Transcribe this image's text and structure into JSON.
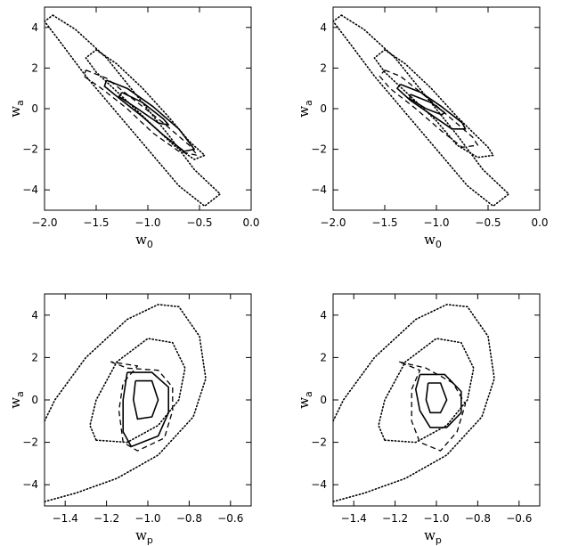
{
  "chart_data": [
    {
      "type": "contour",
      "panel": "top-left",
      "xlabel": "w",
      "xlabel_sub": "0",
      "ylabel": "w",
      "ylabel_sub": "a",
      "xlim": [
        -2.0,
        0.0
      ],
      "ylim": [
        -5,
        5
      ],
      "xticks": [
        "-2.0",
        "-1.5",
        "-1.0",
        "-0.5",
        "0.0"
      ],
      "yticks": [
        "-4",
        "-2",
        "0",
        "2",
        "4"
      ],
      "contours": [
        {
          "style": "dotted",
          "center": [
            -1.1,
            0.0
          ],
          "rx": 0.12,
          "ry": 5.6,
          "rot": 0.9,
          "points": [
            [
              -1.92,
              4.6
            ],
            [
              -1.7,
              3.9
            ],
            [
              -1.4,
              2.5
            ],
            [
              -1.1,
              0.6
            ],
            [
              -0.8,
              -1.3
            ],
            [
              -0.55,
              -3.0
            ],
            [
              -0.3,
              -4.2
            ],
            [
              -0.45,
              -4.8
            ],
            [
              -0.7,
              -3.8
            ],
            [
              -1.0,
              -2.0
            ],
            [
              -1.3,
              -0.2
            ],
            [
              -1.6,
              1.6
            ],
            [
              -1.85,
              3.3
            ],
            [
              -2.0,
              4.3
            ],
            [
              -1.92,
              4.6
            ]
          ]
        },
        {
          "style": "dotted",
          "points": [
            [
              -1.5,
              2.9
            ],
            [
              -1.3,
              2.2
            ],
            [
              -1.05,
              1.0
            ],
            [
              -0.8,
              -0.4
            ],
            [
              -0.6,
              -1.6
            ],
            [
              -0.45,
              -2.3
            ],
            [
              -0.55,
              -2.5
            ],
            [
              -0.75,
              -1.8
            ],
            [
              -1.0,
              -0.6
            ],
            [
              -1.25,
              0.6
            ],
            [
              -1.5,
              1.8
            ],
            [
              -1.6,
              2.5
            ],
            [
              -1.5,
              2.9
            ]
          ]
        },
        {
          "style": "dashed",
          "points": [
            [
              -1.6,
              1.9
            ],
            [
              -1.4,
              1.5
            ],
            [
              -1.15,
              0.5
            ],
            [
              -0.85,
              -0.7
            ],
            [
              -0.6,
              -1.8
            ],
            [
              -0.52,
              -2.3
            ],
            [
              -0.7,
              -2.1
            ],
            [
              -0.95,
              -1.2
            ],
            [
              -1.2,
              0.0
            ],
            [
              -1.45,
              1.0
            ],
            [
              -1.62,
              1.6
            ],
            [
              -1.6,
              1.9
            ]
          ]
        },
        {
          "style": "solid",
          "points": [
            [
              -1.4,
              1.4
            ],
            [
              -1.2,
              1.0
            ],
            [
              -0.95,
              0.1
            ],
            [
              -0.7,
              -1.0
            ],
            [
              -0.55,
              -2.0
            ],
            [
              -0.65,
              -2.1
            ],
            [
              -0.85,
              -1.3
            ],
            [
              -1.05,
              -0.4
            ],
            [
              -1.25,
              0.4
            ],
            [
              -1.42,
              1.1
            ],
            [
              -1.4,
              1.4
            ]
          ]
        },
        {
          "style": "solid",
          "points": [
            [
              -1.25,
              0.8
            ],
            [
              -1.05,
              0.3
            ],
            [
              -0.85,
              -0.5
            ],
            [
              -0.8,
              -0.8
            ],
            [
              -0.9,
              -0.7
            ],
            [
              -1.1,
              0.0
            ],
            [
              -1.28,
              0.6
            ],
            [
              -1.25,
              0.8
            ]
          ]
        }
      ]
    },
    {
      "type": "contour",
      "panel": "top-right",
      "xlabel": "w",
      "xlabel_sub": "0",
      "ylabel": "w",
      "ylabel_sub": "a",
      "xlim": [
        -2.0,
        0.0
      ],
      "ylim": [
        -5,
        5
      ],
      "xticks": [
        "-2.0",
        "-1.5",
        "-1.0",
        "-0.5",
        "0.0"
      ],
      "yticks": [
        "-4",
        "-2",
        "0",
        "2",
        "4"
      ],
      "contours": [
        {
          "style": "dotted",
          "points": [
            [
              -1.92,
              4.6
            ],
            [
              -1.7,
              3.9
            ],
            [
              -1.4,
              2.5
            ],
            [
              -1.1,
              0.6
            ],
            [
              -0.8,
              -1.3
            ],
            [
              -0.55,
              -3.0
            ],
            [
              -0.3,
              -4.2
            ],
            [
              -0.45,
              -4.8
            ],
            [
              -0.7,
              -3.8
            ],
            [
              -1.0,
              -2.0
            ],
            [
              -1.3,
              -0.2
            ],
            [
              -1.6,
              1.6
            ],
            [
              -1.85,
              3.3
            ],
            [
              -2.0,
              4.3
            ],
            [
              -1.92,
              4.6
            ]
          ]
        },
        {
          "style": "dotted",
          "points": [
            [
              -1.5,
              2.9
            ],
            [
              -1.3,
              2.2
            ],
            [
              -1.05,
              1.0
            ],
            [
              -0.8,
              -0.4
            ],
            [
              -0.5,
              -1.9
            ],
            [
              -0.45,
              -2.3
            ],
            [
              -0.6,
              -2.4
            ],
            [
              -0.8,
              -1.8
            ],
            [
              -1.0,
              -0.6
            ],
            [
              -1.25,
              0.6
            ],
            [
              -1.5,
              1.8
            ],
            [
              -1.6,
              2.5
            ],
            [
              -1.5,
              2.9
            ]
          ]
        },
        {
          "style": "dashed",
          "points": [
            [
              -1.5,
              1.9
            ],
            [
              -1.35,
              1.6
            ],
            [
              -1.15,
              0.8
            ],
            [
              -0.9,
              -0.3
            ],
            [
              -0.65,
              -1.4
            ],
            [
              -0.6,
              -1.8
            ],
            [
              -0.75,
              -1.9
            ],
            [
              -0.95,
              -1.1
            ],
            [
              -1.2,
              0.0
            ],
            [
              -1.45,
              1.0
            ],
            [
              -1.55,
              1.6
            ],
            [
              -1.5,
              1.9
            ]
          ]
        },
        {
          "style": "solid",
          "points": [
            [
              -1.35,
              1.2
            ],
            [
              -1.15,
              0.8
            ],
            [
              -0.95,
              0.1
            ],
            [
              -0.75,
              -0.7
            ],
            [
              -0.72,
              -1.0
            ],
            [
              -0.85,
              -1.0
            ],
            [
              -1.05,
              -0.3
            ],
            [
              -1.25,
              0.4
            ],
            [
              -1.38,
              1.0
            ],
            [
              -1.35,
              1.2
            ]
          ]
        },
        {
          "style": "solid",
          "points": [
            [
              -1.25,
              0.7
            ],
            [
              -1.05,
              0.3
            ],
            [
              -0.92,
              -0.2
            ],
            [
              -0.95,
              -0.3
            ],
            [
              -1.1,
              0.0
            ],
            [
              -1.26,
              0.5
            ],
            [
              -1.25,
              0.7
            ]
          ]
        }
      ]
    },
    {
      "type": "contour",
      "panel": "bottom-left",
      "xlabel": "w",
      "xlabel_sub": "p",
      "ylabel": "w",
      "ylabel_sub": "a",
      "xlim": [
        -1.5,
        -0.5
      ],
      "ylim": [
        -5,
        5
      ],
      "xticks": [
        "-1.4",
        "-1.2",
        "-1.0",
        "-0.8",
        "-0.6"
      ],
      "yticks": [
        "-4",
        "-2",
        "0",
        "2",
        "4"
      ],
      "contours": [
        {
          "style": "dotted",
          "points": [
            [
              -1.5,
              -4.8
            ],
            [
              -1.35,
              -4.4
            ],
            [
              -1.15,
              -3.7
            ],
            [
              -0.95,
              -2.6
            ],
            [
              -0.78,
              -0.8
            ],
            [
              -0.72,
              1.0
            ],
            [
              -0.75,
              3.0
            ],
            [
              -0.85,
              4.4
            ],
            [
              -0.95,
              4.5
            ],
            [
              -1.1,
              3.8
            ],
            [
              -1.3,
              2.0
            ],
            [
              -1.45,
              0.0
            ],
            [
              -1.5,
              -1.0
            ]
          ]
        },
        {
          "style": "dotted",
          "points": [
            [
              -1.25,
              -1.9
            ],
            [
              -1.1,
              -2.0
            ],
            [
              -0.95,
              -1.2
            ],
            [
              -0.85,
              0.0
            ],
            [
              -0.82,
              1.5
            ],
            [
              -0.88,
              2.7
            ],
            [
              -1.0,
              2.9
            ],
            [
              -1.15,
              1.8
            ],
            [
              -1.25,
              0.0
            ],
            [
              -1.28,
              -1.2
            ],
            [
              -1.25,
              -1.9
            ]
          ]
        },
        {
          "style": "dashed",
          "points": [
            [
              -1.18,
              1.8
            ],
            [
              -1.1,
              1.5
            ],
            [
              -0.95,
              1.4
            ],
            [
              -0.88,
              0.6
            ],
            [
              -0.88,
              -0.5
            ],
            [
              -0.92,
              -1.8
            ],
            [
              -1.05,
              -2.4
            ],
            [
              -1.12,
              -2.0
            ],
            [
              -1.14,
              -0.5
            ],
            [
              -1.12,
              0.8
            ],
            [
              -1.05,
              1.6
            ],
            [
              -1.18,
              1.8
            ]
          ]
        },
        {
          "style": "solid",
          "points": [
            [
              -1.1,
              1.3
            ],
            [
              -0.98,
              1.3
            ],
            [
              -0.9,
              0.6
            ],
            [
              -0.9,
              -0.6
            ],
            [
              -0.95,
              -1.7
            ],
            [
              -1.08,
              -2.2
            ],
            [
              -1.12,
              -1.5
            ],
            [
              -1.12,
              0.0
            ],
            [
              -1.1,
              1.3
            ]
          ]
        },
        {
          "style": "solid",
          "points": [
            [
              -1.06,
              0.9
            ],
            [
              -0.98,
              0.9
            ],
            [
              -0.95,
              0.0
            ],
            [
              -0.98,
              -0.8
            ],
            [
              -1.05,
              -0.9
            ],
            [
              -1.07,
              0.0
            ],
            [
              -1.06,
              0.9
            ]
          ]
        }
      ]
    },
    {
      "type": "contour",
      "panel": "bottom-right",
      "xlabel": "w",
      "xlabel_sub": "p",
      "ylabel": "w",
      "ylabel_sub": "a",
      "xlim": [
        -1.5,
        -0.5
      ],
      "ylim": [
        -5,
        5
      ],
      "xticks": [
        "-1.4",
        "-1.2",
        "-1.0",
        "-0.8",
        "-0.6"
      ],
      "yticks": [
        "-4",
        "-2",
        "0",
        "2",
        "4"
      ],
      "contours": [
        {
          "style": "dotted",
          "points": [
            [
              -1.5,
              -4.8
            ],
            [
              -1.35,
              -4.4
            ],
            [
              -1.15,
              -3.7
            ],
            [
              -0.95,
              -2.6
            ],
            [
              -0.78,
              -0.8
            ],
            [
              -0.72,
              1.0
            ],
            [
              -0.75,
              3.0
            ],
            [
              -0.85,
              4.4
            ],
            [
              -0.95,
              4.5
            ],
            [
              -1.1,
              3.8
            ],
            [
              -1.3,
              2.0
            ],
            [
              -1.45,
              0.0
            ],
            [
              -1.5,
              -1.0
            ]
          ]
        },
        {
          "style": "dotted",
          "points": [
            [
              -1.25,
              -1.9
            ],
            [
              -1.1,
              -2.0
            ],
            [
              -0.95,
              -1.2
            ],
            [
              -0.85,
              0.0
            ],
            [
              -0.82,
              1.5
            ],
            [
              -0.88,
              2.7
            ],
            [
              -1.0,
              2.9
            ],
            [
              -1.15,
              1.8
            ],
            [
              -1.25,
              0.0
            ],
            [
              -1.28,
              -1.2
            ],
            [
              -1.25,
              -1.9
            ]
          ]
        },
        {
          "style": "dashed",
          "points": [
            [
              -1.18,
              1.8
            ],
            [
              -1.05,
              1.5
            ],
            [
              -0.92,
              0.8
            ],
            [
              -0.86,
              -0.2
            ],
            [
              -0.9,
              -1.5
            ],
            [
              -0.98,
              -2.4
            ],
            [
              -1.08,
              -2.0
            ],
            [
              -1.12,
              -1.0
            ],
            [
              -1.12,
              0.5
            ],
            [
              -1.08,
              1.4
            ],
            [
              -1.18,
              1.8
            ]
          ]
        },
        {
          "style": "solid",
          "points": [
            [
              -1.08,
              1.2
            ],
            [
              -0.96,
              1.2
            ],
            [
              -0.88,
              0.4
            ],
            [
              -0.88,
              -0.6
            ],
            [
              -0.95,
              -1.3
            ],
            [
              -1.03,
              -1.3
            ],
            [
              -1.08,
              -0.5
            ],
            [
              -1.1,
              0.5
            ],
            [
              -1.08,
              1.2
            ]
          ]
        },
        {
          "style": "solid",
          "points": [
            [
              -1.04,
              0.8
            ],
            [
              -0.98,
              0.8
            ],
            [
              -0.95,
              0.0
            ],
            [
              -0.98,
              -0.6
            ],
            [
              -1.03,
              -0.6
            ],
            [
              -1.05,
              0.0
            ],
            [
              -1.04,
              0.8
            ]
          ]
        }
      ]
    }
  ]
}
